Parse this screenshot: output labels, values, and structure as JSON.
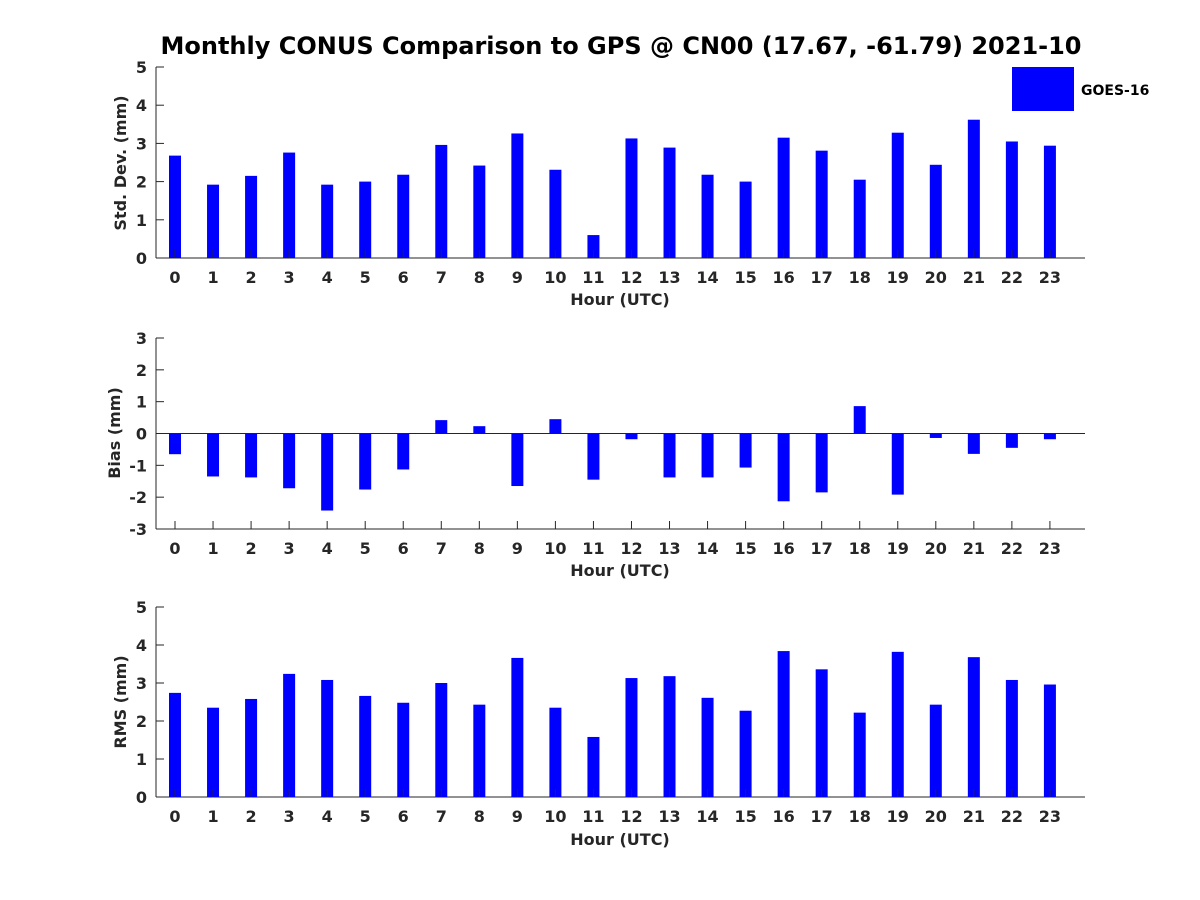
{
  "figure_title": "Monthly CONUS Comparison to GPS @ CN00 (17.67, -61.79) 2021-10",
  "legend": {
    "label": "GOES-16",
    "color": "#0000ff",
    "position": "top-right"
  },
  "chart_data": [
    {
      "type": "bar",
      "categories": [
        "0",
        "1",
        "2",
        "3",
        "4",
        "5",
        "6",
        "7",
        "8",
        "9",
        "10",
        "11",
        "12",
        "13",
        "14",
        "15",
        "16",
        "17",
        "18",
        "19",
        "20",
        "21",
        "22",
        "23"
      ],
      "series": [
        {
          "name": "GOES-16",
          "color": "#0000ff",
          "values": [
            2.68,
            1.92,
            2.15,
            2.76,
            1.92,
            2.0,
            2.18,
            2.96,
            2.42,
            3.26,
            2.31,
            0.6,
            3.13,
            2.89,
            2.18,
            2.0,
            3.15,
            2.81,
            2.05,
            3.28,
            2.44,
            3.62,
            3.05,
            2.94
          ]
        }
      ],
      "title": "",
      "xlabel": "Hour (UTC)",
      "ylabel": "Std. Dev. (mm)",
      "ylim": [
        0,
        5
      ],
      "yticks": [
        "0",
        "1",
        "2",
        "3",
        "4",
        "5"
      ],
      "grid": false
    },
    {
      "type": "bar",
      "categories": [
        "0",
        "1",
        "2",
        "3",
        "4",
        "5",
        "6",
        "7",
        "8",
        "9",
        "10",
        "11",
        "12",
        "13",
        "14",
        "15",
        "16",
        "17",
        "18",
        "19",
        "20",
        "21",
        "22",
        "23"
      ],
      "series": [
        {
          "name": "GOES-16",
          "color": "#0000ff",
          "values": [
            -0.65,
            -1.35,
            -1.38,
            -1.72,
            -2.42,
            -1.76,
            -1.13,
            0.42,
            0.23,
            -1.65,
            0.45,
            -1.45,
            -0.18,
            -1.38,
            -1.38,
            -1.07,
            -2.13,
            -1.85,
            0.86,
            -1.92,
            -0.14,
            -0.64,
            -0.45,
            -0.18
          ]
        }
      ],
      "title": "",
      "xlabel": "Hour (UTC)",
      "ylabel": "Bias (mm)",
      "ylim": [
        -3,
        3
      ],
      "yticks": [
        "-3",
        "-2",
        "-1",
        "0",
        "1",
        "2",
        "3"
      ],
      "grid": false,
      "zero_line": true
    },
    {
      "type": "bar",
      "categories": [
        "0",
        "1",
        "2",
        "3",
        "4",
        "5",
        "6",
        "7",
        "8",
        "9",
        "10",
        "11",
        "12",
        "13",
        "14",
        "15",
        "16",
        "17",
        "18",
        "19",
        "20",
        "21",
        "22",
        "23"
      ],
      "series": [
        {
          "name": "GOES-16",
          "color": "#0000ff",
          "values": [
            2.74,
            2.35,
            2.58,
            3.24,
            3.08,
            2.66,
            2.48,
            3.0,
            2.43,
            3.66,
            2.35,
            1.58,
            3.13,
            3.18,
            2.61,
            2.27,
            3.84,
            3.36,
            2.22,
            3.82,
            2.43,
            3.68,
            3.08,
            2.96
          ]
        }
      ],
      "title": "",
      "xlabel": "Hour (UTC)",
      "ylabel": "RMS (mm)",
      "ylim": [
        0,
        5
      ],
      "yticks": [
        "0",
        "1",
        "2",
        "3",
        "4",
        "5"
      ],
      "grid": false
    }
  ]
}
